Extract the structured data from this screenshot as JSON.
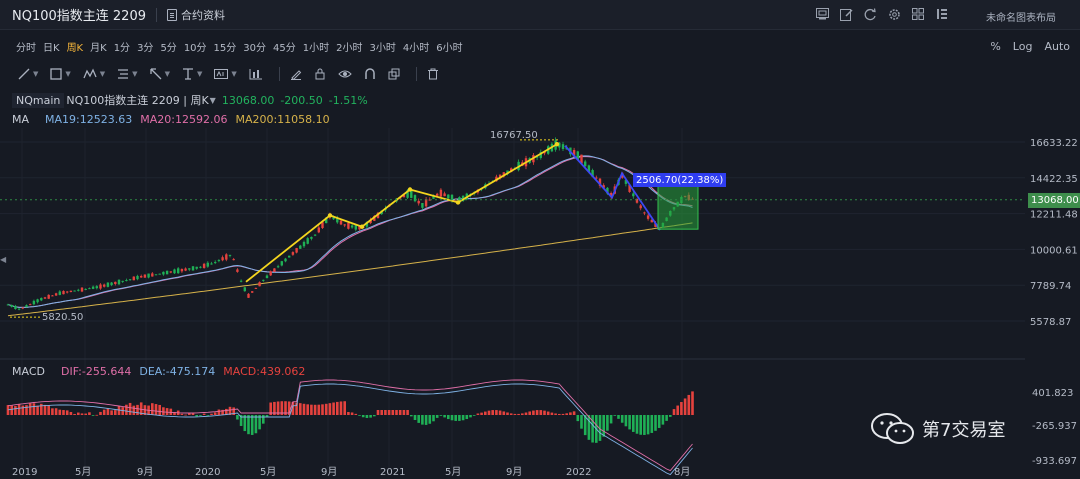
{
  "header": {
    "symbol_title": "NQ100指数主连 2209",
    "contract_info": "合约资料",
    "layout_name": "未命名图表布局",
    "icons": [
      "screenshot-icon",
      "edit-icon",
      "refresh-icon",
      "settings-icon",
      "grid-icon",
      "menu-icon"
    ]
  },
  "periods": [
    "分时",
    "日K",
    "周K",
    "月K",
    "1分",
    "3分",
    "5分",
    "10分",
    "15分",
    "30分",
    "45分",
    "1小时",
    "2小时",
    "3小时",
    "4小时",
    "6小时"
  ],
  "active_period": "周K",
  "scale_options": [
    "%",
    "Log",
    "Auto"
  ],
  "drawing_tools": [
    "line-tool-icon",
    "rect-tool-icon",
    "pattern-tool-icon",
    "fib-tool-icon",
    "arrow-tool-icon",
    "text-tool-icon",
    "label-tool-icon",
    "bars-tool-icon",
    "pen-icon",
    "lock-icon",
    "eye-icon",
    "magnet-icon",
    "layers-icon",
    "trash-icon"
  ],
  "main_legend": {
    "name": "NQmain",
    "desc": "NQ100指数主连 2209 | 周K",
    "price": "13068.00",
    "change": "-200.50",
    "change_pct": "-1.51%"
  },
  "ma_legend": {
    "label": "MA",
    "ma19": "MA19:12523.63",
    "ma20": "MA20:12592.06",
    "ma200": "MA200:11058.10"
  },
  "macd_legend": {
    "label": "MACD",
    "dif": "DIF:-255.644",
    "dea": "DEA:-475.174",
    "macd": "MACD:439.062"
  },
  "price_axis": [
    "16633.22",
    "14422.35",
    "12211.48",
    "10000.61",
    "7789.74",
    "5578.87"
  ],
  "current_price": "13068.00",
  "macd_axis": [
    "401.823",
    "-265.937",
    "-933.697"
  ],
  "time_axis": [
    "2019",
    "5月",
    "9月",
    "2020",
    "5月",
    "9月",
    "2021",
    "5月",
    "9月",
    "2022",
    "8月"
  ],
  "annotations": {
    "high": "16767.50",
    "low": "5820.50",
    "measure": "2506.70(22.38%)"
  },
  "watermark": "第7交易室",
  "colors": {
    "up": "#e5423e",
    "down": "#1fb056",
    "ma19": "#7fb2e5",
    "ma20": "#e06fa8",
    "ma200": "#d6b24a",
    "active": "#f5b53a",
    "annot_yellow": "#f4d51e",
    "annot_blue": "#3d47f5"
  },
  "chart_data": {
    "type": "candlestick",
    "price_range": [
      5578.87,
      16633.22
    ],
    "annotations_data": {
      "high": 16767.5,
      "low": 5820.5,
      "measure_range": 2506.7,
      "measure_pct": 22.38
    }
  }
}
